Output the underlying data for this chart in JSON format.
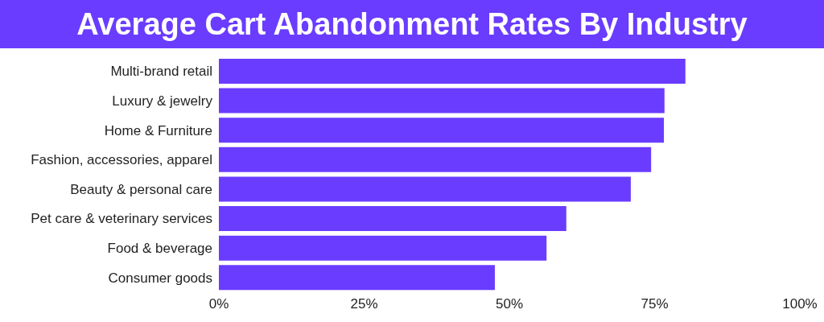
{
  "chart_data": {
    "type": "bar",
    "orientation": "horizontal",
    "title": "Average Cart Abandonment Rates By Industry",
    "categories": [
      "Multi-brand retail",
      "Luxury & jewelry",
      "Home & Furniture",
      "Fashion, accessories, apparel",
      "Beauty & personal care",
      "Pet care & veterinary services",
      "Food & beverage",
      "Consumer goods"
    ],
    "values": [
      80.3,
      76.7,
      76.6,
      74.4,
      70.9,
      59.8,
      56.4,
      47.5
    ],
    "color": "#6a3cff",
    "xlim": [
      0,
      100
    ],
    "xticks": [
      {
        "value": 0,
        "label": "0%"
      },
      {
        "value": 25,
        "label": "25%"
      },
      {
        "value": 50,
        "label": "50%"
      },
      {
        "value": 75,
        "label": "75%"
      },
      {
        "value": 100,
        "label": "100%"
      }
    ],
    "grid": false,
    "legend": false
  }
}
